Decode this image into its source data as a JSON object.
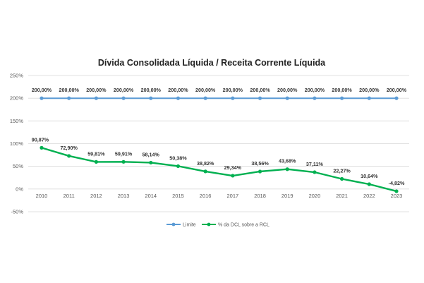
{
  "chart_data": {
    "type": "line",
    "title": "Dívida Consolidada Líquida / Receita Corrente Líquida",
    "xlabel": "",
    "ylabel": "",
    "categories": [
      "2010",
      "2011",
      "2012",
      "2013",
      "2014",
      "2015",
      "2016",
      "2017",
      "2018",
      "2019",
      "2020",
      "2021",
      "2022",
      "2023"
    ],
    "y_ticks": [
      "-50%",
      "0%",
      "50%",
      "100%",
      "150%",
      "200%",
      "250%"
    ],
    "ylim": [
      -50,
      250
    ],
    "grid": true,
    "legend_position": "bottom",
    "series": [
      {
        "name": "Limite",
        "color": "#5b9bd5",
        "values": [
          200,
          200,
          200,
          200,
          200,
          200,
          200,
          200,
          200,
          200,
          200,
          200,
          200,
          200
        ],
        "labels": [
          "200,00%",
          "200,00%",
          "200,00%",
          "200,00%",
          "200,00%",
          "200,00%",
          "200,00%",
          "200,00%",
          "200,00%",
          "200,00%",
          "200,00%",
          "200,00%",
          "200,00%",
          "200,00%"
        ]
      },
      {
        "name": "% da DCL sobre a RCL",
        "color": "#00b050",
        "values": [
          90.87,
          72.9,
          59.81,
          59.91,
          58.14,
          50.38,
          38.82,
          29.34,
          38.56,
          43.68,
          37.11,
          22.27,
          10.64,
          -4.82
        ],
        "labels": [
          "90,87%",
          "72,90%",
          "59,81%",
          "59,91%",
          "58,14%",
          "50,38%",
          "38,82%",
          "29,34%",
          "38,56%",
          "43,68%",
          "37,11%",
          "22,27%",
          "10,64%",
          "-4,82%"
        ]
      }
    ]
  }
}
